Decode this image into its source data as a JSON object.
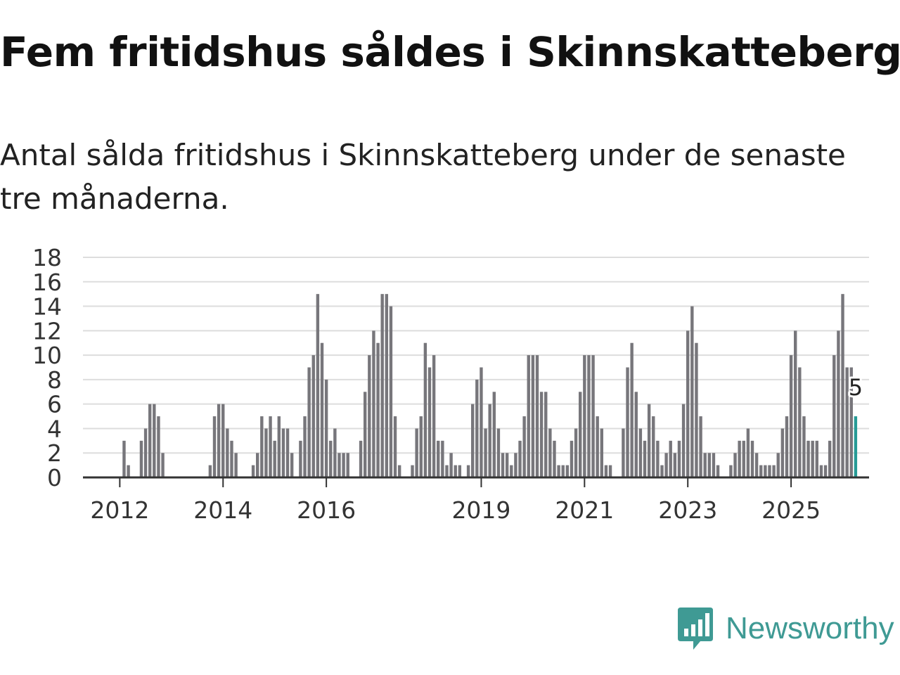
{
  "title": "Fem fritidshus såldes i Skinnskatteberg",
  "subtitle": "Antal sålda fritidshus i Skinnskatteberg under de senaste tre månaderna.",
  "brand": {
    "name": "Newsworthy",
    "color": "#3f9a94",
    "icon": "newsworthy-chart-bubble-icon"
  },
  "colors": {
    "bar": "#77767b",
    "highlight": "#279b96",
    "grid": "#dddddd",
    "axis": "#333333"
  },
  "chart_data": {
    "type": "bar",
    "title": "Fem fritidshus såldes i Skinnskatteberg",
    "xlabel": "",
    "ylabel": "",
    "ylim": [
      0,
      18
    ],
    "yticks": [
      0,
      2,
      4,
      6,
      8,
      10,
      12,
      14,
      16,
      18
    ],
    "first_month": "2011-05",
    "x_tick_labels": [
      "2012",
      "2014",
      "2016",
      "2019",
      "2021",
      "2023",
      "2025"
    ],
    "highlight_label": "5",
    "values": [
      0,
      0,
      0,
      0,
      0,
      0,
      0,
      0,
      0,
      3,
      1,
      0,
      0,
      3,
      4,
      6,
      6,
      5,
      2,
      0,
      0,
      0,
      0,
      0,
      0,
      0,
      0,
      0,
      0,
      1,
      5,
      6,
      6,
      4,
      3,
      2,
      0,
      0,
      0,
      1,
      2,
      5,
      4,
      5,
      3,
      5,
      4,
      4,
      2,
      0,
      3,
      5,
      9,
      10,
      15,
      11,
      8,
      3,
      4,
      2,
      2,
      2,
      0,
      0,
      3,
      7,
      10,
      12,
      11,
      15,
      15,
      14,
      5,
      1,
      0,
      0,
      1,
      4,
      5,
      11,
      9,
      10,
      3,
      3,
      1,
      2,
      1,
      1,
      0,
      1,
      6,
      8,
      9,
      4,
      6,
      7,
      4,
      2,
      2,
      1,
      2,
      3,
      5,
      10,
      10,
      10,
      7,
      7,
      4,
      3,
      1,
      1,
      1,
      3,
      4,
      7,
      10,
      10,
      10,
      5,
      4,
      1,
      1,
      0,
      0,
      4,
      9,
      11,
      7,
      4,
      3,
      6,
      5,
      3,
      1,
      2,
      3,
      2,
      3,
      6,
      12,
      14,
      11,
      5,
      2,
      2,
      2,
      1,
      0,
      0,
      1,
      2,
      3,
      3,
      4,
      3,
      2,
      1,
      1,
      1,
      1,
      2,
      4,
      5,
      10,
      12,
      9,
      5,
      3,
      3,
      3,
      1,
      1,
      3,
      10,
      12,
      15,
      9,
      9,
      5
    ]
  }
}
